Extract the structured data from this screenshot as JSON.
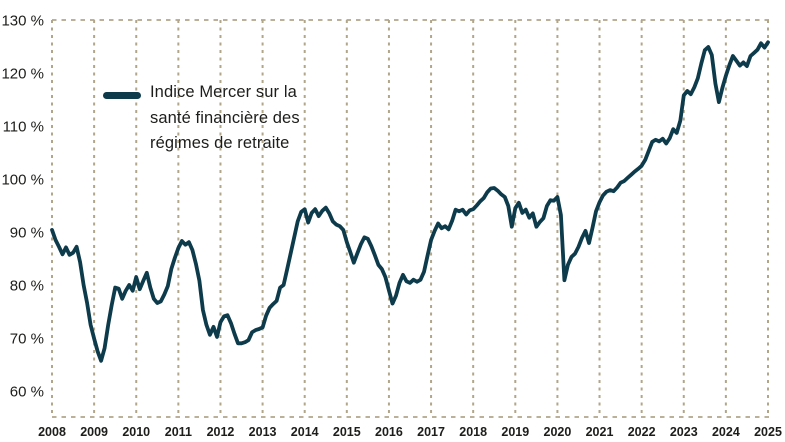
{
  "figure": {
    "background": "#ffffff"
  },
  "legend": {
    "label": "Indice Mercer sur la santé financière des régimes de retraite",
    "lines": [
      "Indice Mercer sur la",
      "santé financière des",
      "régimes de retraite"
    ],
    "position": "top-left"
  },
  "chart_data": {
    "type": "line",
    "title": "",
    "xlabel": "",
    "ylabel": "",
    "x_tick_labels": [
      "2008",
      "2009",
      "2010",
      "2011",
      "2012",
      "2013",
      "2014",
      "2015",
      "2016",
      "2017",
      "2018",
      "2019",
      "2020",
      "2021",
      "2022",
      "2023",
      "2024",
      "2025"
    ],
    "y_ticks": [
      60,
      70,
      80,
      90,
      100,
      110,
      120,
      130
    ],
    "y_tick_suffix": " %",
    "ylim": [
      55,
      130
    ],
    "grid": "vertical-dashed-per-year-plus-top-bottom-border",
    "legend_position": "top-left",
    "x_start_year": 2008,
    "points_per_year": 12,
    "series": [
      {
        "name": "Indice Mercer sur la santé financière des régimes de retraite",
        "values": [
          90.4,
          88.5,
          87.2,
          85.8,
          87.1,
          85.7,
          86.1,
          87.2,
          84.3,
          80.0,
          76.6,
          72.5,
          69.9,
          67.5,
          65.7,
          68.1,
          72.5,
          76.2,
          79.5,
          79.3,
          77.4,
          78.9,
          80.0,
          78.9,
          81.5,
          79.2,
          80.8,
          82.3,
          79.5,
          77.4,
          76.6,
          76.9,
          78.2,
          79.8,
          83.0,
          85.1,
          87.0,
          88.3,
          87.6,
          88.1,
          86.6,
          84.0,
          80.8,
          75.3,
          72.5,
          70.6,
          72.1,
          70.2,
          73.0,
          74.1,
          74.3,
          72.8,
          70.8,
          69.0,
          69.0,
          69.2,
          69.6,
          71.1,
          71.5,
          71.7,
          72.0,
          74.2,
          75.7,
          76.4,
          77.0,
          79.5,
          80.0,
          83.0,
          86.0,
          89.0,
          92.0,
          93.8,
          94.3,
          91.8,
          93.6,
          94.3,
          93.0,
          94.0,
          94.6,
          93.5,
          92.0,
          91.4,
          91.1,
          90.4,
          88.1,
          86.2,
          84.2,
          86.0,
          87.7,
          89.0,
          88.7,
          87.3,
          85.6,
          83.8,
          83.0,
          81.5,
          79.0,
          76.5,
          78.0,
          80.4,
          81.9,
          80.7,
          80.4,
          81.0,
          80.6,
          81.0,
          82.5,
          85.5,
          88.5,
          90.2,
          91.6,
          90.7,
          91.1,
          90.5,
          92.1,
          94.2,
          93.9,
          94.2,
          93.3,
          94.1,
          94.3,
          95.0,
          95.8,
          96.4,
          97.5,
          98.2,
          98.3,
          97.8,
          97.1,
          96.6,
          94.9,
          91.0,
          94.5,
          95.5,
          93.6,
          94.2,
          92.7,
          93.5,
          91.0,
          91.9,
          92.6,
          94.9,
          96.0,
          95.9,
          96.6,
          93.2,
          80.9,
          83.8,
          85.3,
          85.9,
          87.2,
          88.9,
          90.2,
          87.9,
          90.8,
          93.9,
          95.6,
          96.9,
          97.6,
          97.9,
          97.7,
          98.4,
          99.3,
          99.6,
          100.2,
          100.8,
          101.4,
          101.9,
          102.5,
          103.6,
          105.3,
          107.0,
          107.4,
          107.1,
          107.6,
          106.7,
          107.7,
          109.4,
          108.7,
          111.0,
          115.8,
          116.6,
          116.0,
          117.3,
          119.0,
          121.8,
          124.3,
          124.9,
          123.4,
          118.0,
          114.5,
          117.2,
          119.5,
          121.5,
          123.2,
          122.3,
          121.4,
          122.0,
          121.3,
          123.2,
          123.8,
          124.4,
          125.6,
          124.8,
          125.8
        ]
      }
    ],
    "colors": {
      "line": "#0d3b4b",
      "grid": "#b2a68a",
      "text": "#1d1d1b"
    }
  }
}
